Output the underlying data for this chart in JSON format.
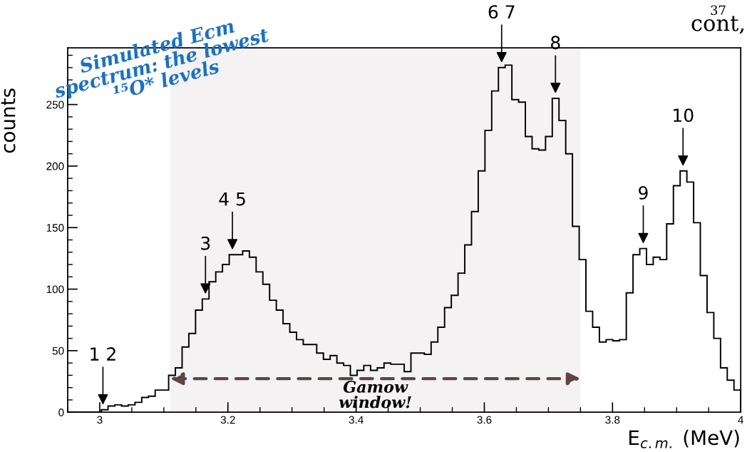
{
  "chart_data": {
    "type": "histogram",
    "title": "Simulated Ecm\nspectrum: the lowest\n¹⁵O* levels",
    "xlabel": "E$_{c.m.}$ (MeV)",
    "ylabel": "counts",
    "bins": [
      2.95,
      2.9605,
      2.971,
      2.9815,
      2.992,
      3.0025,
      3.013,
      3.0235,
      3.034,
      3.0445,
      3.055,
      3.0655,
      3.076,
      3.0865,
      3.097,
      3.1075,
      3.118,
      3.1285,
      3.139,
      3.1495,
      3.16,
      3.1705,
      3.181,
      3.1915,
      3.202,
      3.2125,
      3.223,
      3.2335,
      3.244,
      3.2545,
      3.265,
      3.2755,
      3.286,
      3.2965,
      3.307,
      3.3175,
      3.328,
      3.3385,
      3.349,
      3.3595,
      3.37,
      3.3805,
      3.391,
      3.4015,
      3.412,
      3.4225,
      3.433,
      3.4435,
      3.454,
      3.4645,
      3.475,
      3.4855,
      3.496,
      3.5065,
      3.517,
      3.5275,
      3.538,
      3.5485,
      3.559,
      3.5695,
      3.58,
      3.5905,
      3.601,
      3.6115,
      3.622,
      3.6325,
      3.643,
      3.6535,
      3.664,
      3.6745,
      3.685,
      3.6955,
      3.706,
      3.7165,
      3.727,
      3.7375,
      3.748,
      3.7585,
      3.769,
      3.7795,
      3.79,
      3.8005,
      3.811,
      3.8215,
      3.832,
      3.8425,
      3.853,
      3.8635,
      3.874,
      3.8845,
      3.895,
      3.9055,
      3.916,
      3.9265,
      3.937,
      3.9475,
      3.958,
      3.9685,
      3.979,
      3.9895,
      4.0
    ],
    "values": [
      0,
      0,
      0,
      0,
      0,
      2,
      5,
      6,
      5,
      6,
      8,
      12,
      13,
      18,
      18,
      30,
      36,
      53,
      64,
      83,
      92,
      106,
      114,
      120,
      128,
      128,
      131,
      126,
      114,
      104,
      91,
      83,
      72,
      65,
      59,
      55,
      55,
      48,
      43,
      46,
      40,
      38,
      30,
      34,
      38,
      34,
      36,
      40,
      39,
      39,
      33,
      48,
      48,
      47,
      57,
      69,
      85,
      95,
      113,
      136,
      163,
      196,
      229,
      261,
      280,
      282,
      254,
      252,
      224,
      214,
      213,
      224,
      255,
      237,
      210,
      151,
      124,
      82,
      69,
      57,
      59,
      58,
      59,
      97,
      128,
      133,
      120,
      126,
      124,
      153,
      184,
      196,
      187,
      154,
      111,
      81,
      60,
      36,
      26,
      18
    ],
    "color": "#000000",
    "xlim": [
      2.95,
      4.0
    ],
    "xticks": [
      3,
      3.2,
      3.4,
      3.6,
      3.8,
      4
    ],
    "ylim": [
      0,
      296
    ],
    "yticks": [
      0,
      50,
      100,
      150,
      200,
      250
    ],
    "grid": false,
    "bands": [
      {
        "axis": "x",
        "from": 3.11,
        "to": 3.75,
        "label": "Gamow\nwindow!",
        "color": "#5e4545"
      }
    ],
    "annotations": [
      {
        "text": "1 2",
        "x": 3.005,
        "y": 2
      },
      {
        "text": "3",
        "x": 3.165,
        "y": 92
      },
      {
        "text": "4 5",
        "x": 3.207,
        "y": 128
      },
      {
        "text": "6 7",
        "x": 3.627,
        "y": 280
      },
      {
        "text": "8",
        "x": 3.711,
        "y": 255
      },
      {
        "text": "9",
        "x": 3.848,
        "y": 133
      },
      {
        "text": "10",
        "x": 3.91,
        "y": 196
      },
      "37",
      "cont,"
    ]
  }
}
